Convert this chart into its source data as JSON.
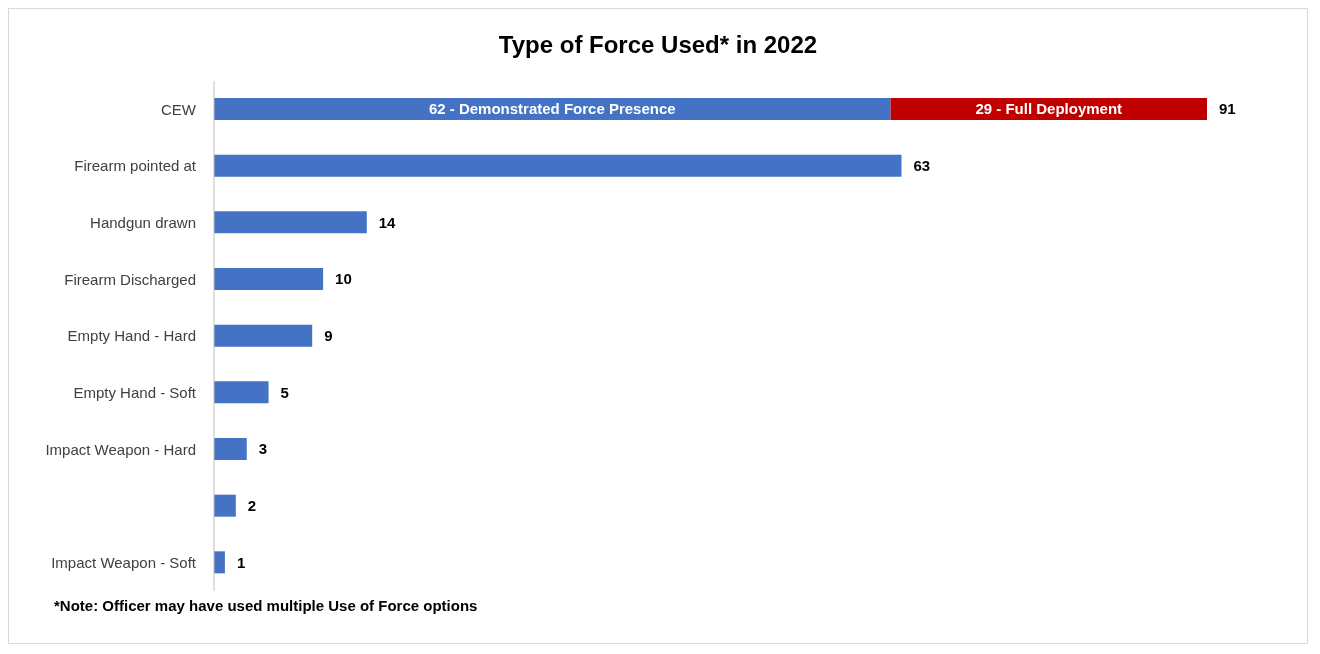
{
  "chart_data": {
    "type": "bar",
    "orientation": "horizontal",
    "stacked": true,
    "title": "Type of Force Used* in 2022",
    "categories": [
      "CEW",
      "Firearm pointed at",
      "Handgun drawn",
      "Firearm Discharged",
      "Empty Hand - Hard",
      "Empty Hand - Soft",
      "Impact Weapon - Hard",
      null,
      "Impact Weapon - Soft"
    ],
    "series": [
      {
        "color": "#4472c4",
        "values": [
          62,
          63,
          14,
          10,
          9,
          5,
          3,
          2,
          1
        ],
        "value_labels": [
          "62 - Demonstrated Force Presence",
          null,
          null,
          null,
          null,
          null,
          null,
          null,
          null
        ]
      },
      {
        "color": "#c00000",
        "values": [
          29,
          null,
          null,
          null,
          null,
          null,
          null,
          null,
          null
        ],
        "value_labels": [
          "29 - Full Deployment",
          null,
          null,
          null,
          null,
          null,
          null,
          null,
          null
        ]
      }
    ],
    "totals": [
      "91",
      "63",
      "14",
      "10",
      "9",
      "5",
      "3",
      "2",
      "1"
    ],
    "grid": false,
    "legend": false,
    "annotations": [
      "*Note: Officer may have used multiple Use of Force options"
    ]
  }
}
